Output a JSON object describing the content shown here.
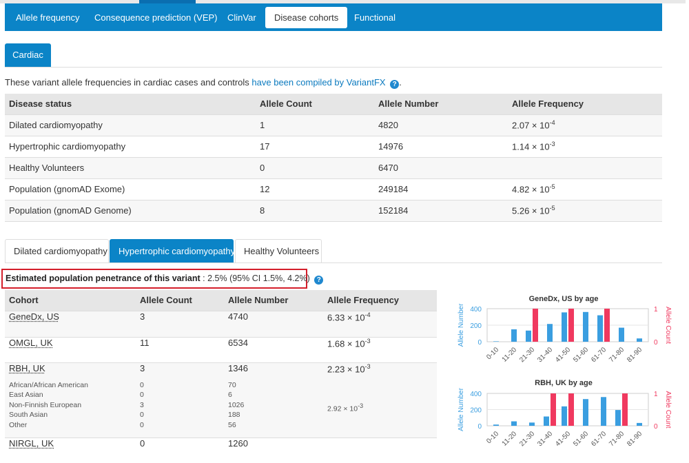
{
  "top_tabs": [
    {
      "label": "Allele frequency"
    },
    {
      "label": "Consequence prediction (VEP)"
    },
    {
      "label": "ClinVar"
    },
    {
      "label": "Disease cohorts"
    },
    {
      "label": "Functional"
    }
  ],
  "cardiac_tab": "Cardiac",
  "intro": {
    "text": "These variant allele frequencies in cardiac cases and controls ",
    "link": "have been compiled by VariantFX",
    "help": "?",
    "end": "."
  },
  "main_table": {
    "headers": [
      "Disease status",
      "Allele Count",
      "Allele Number",
      "Allele Frequency"
    ],
    "rows": [
      {
        "status": "Dilated cardiomyopathy",
        "count": "1",
        "number": "4820",
        "freq_base": "2.07 × 10",
        "freq_exp": "-4"
      },
      {
        "status": "Hypertrophic cardiomyopathy",
        "count": "17",
        "number": "14976",
        "freq_base": "1.14 × 10",
        "freq_exp": "-3"
      },
      {
        "status": "Healthy Volunteers",
        "count": "0",
        "number": "6470",
        "freq_base": "",
        "freq_exp": ""
      },
      {
        "status": "Population (gnomAD Exome)",
        "count": "12",
        "number": "249184",
        "freq_base": "4.82 × 10",
        "freq_exp": "-5"
      },
      {
        "status": "Population (gnomAD Genome)",
        "count": "8",
        "number": "152184",
        "freq_base": "5.26 × 10",
        "freq_exp": "-5"
      }
    ]
  },
  "sub_tabs": [
    {
      "label": "Dilated cardiomyopathy"
    },
    {
      "label": "Hypertrophic cardiomyopathy"
    },
    {
      "label": "Healthy Volunteers"
    }
  ],
  "penetrance": {
    "label": "Estimated population penetrance of this variant",
    "value": " : 2.5% (95% CI 1.5%, 4.2%)",
    "help": "?"
  },
  "cohort_table": {
    "headers": [
      "Cohort",
      "Allele Count",
      "Allele Number",
      "Allele Frequency"
    ],
    "rows": [
      {
        "cohort": "GeneDx, US",
        "count": "3",
        "number": "4740",
        "freq_base": "6.33 × 10",
        "freq_exp": "-4"
      },
      {
        "cohort": "OMGL, UK",
        "count": "11",
        "number": "6534",
        "freq_base": "1.68 × 10",
        "freq_exp": "-3"
      },
      {
        "cohort": "RBH, UK",
        "count": "3",
        "number": "1346",
        "freq_base": "2.23 × 10",
        "freq_exp": "-3",
        "sub": [
          {
            "name": "African/African American",
            "count": "0",
            "number": "70",
            "freq_base": "",
            "freq_exp": ""
          },
          {
            "name": "East Asian",
            "count": "0",
            "number": "6",
            "freq_base": "",
            "freq_exp": ""
          },
          {
            "name": "Non-Finnish European",
            "count": "3",
            "number": "1026",
            "freq_base": "2.92 × 10",
            "freq_exp": "-3"
          },
          {
            "name": "South Asian",
            "count": "0",
            "number": "188",
            "freq_base": "",
            "freq_exp": ""
          },
          {
            "name": "Other",
            "count": "0",
            "number": "56",
            "freq_base": "",
            "freq_exp": ""
          }
        ]
      },
      {
        "cohort": "NIRGL, UK",
        "count": "0",
        "number": "1260",
        "freq_base": "",
        "freq_exp": ""
      }
    ]
  },
  "chart_data": [
    {
      "type": "bar",
      "title": "GeneDx, US by age",
      "categories": [
        "0-10",
        "11-20",
        "21-30",
        "31-40",
        "41-50",
        "51-60",
        "61-70",
        "71-80",
        "81-90"
      ],
      "ylabel": "Allele Number",
      "y2label": "Allele Count",
      "ylim": [
        0,
        400
      ],
      "ylim2": [
        0,
        1
      ],
      "yticks": [
        "400",
        "200",
        "0"
      ],
      "y2ticks": [
        "1",
        "0"
      ],
      "series": [
        {
          "name": "Allele Number",
          "axis": "left",
          "color": "#3a9ee0",
          "values": [
            5,
            150,
            135,
            215,
            355,
            360,
            320,
            170,
            40
          ]
        },
        {
          "name": "Allele Count",
          "axis": "right",
          "color": "#f0395f",
          "values": [
            0,
            0,
            1,
            0,
            1,
            0,
            1,
            0,
            0
          ]
        }
      ]
    },
    {
      "type": "bar",
      "title": "RBH, UK by age",
      "categories": [
        "0-10",
        "11-20",
        "21-30",
        "31-40",
        "41-50",
        "51-60",
        "61-70",
        "71-80",
        "81-90"
      ],
      "ylabel": "Allele Number",
      "y2label": "Allele Count",
      "ylim": [
        0,
        400
      ],
      "ylim2": [
        0,
        1
      ],
      "yticks": [
        "400",
        "200",
        "0"
      ],
      "y2ticks": [
        "1",
        "0"
      ],
      "series": [
        {
          "name": "Allele Number",
          "axis": "left",
          "color": "#3a9ee0",
          "values": [
            15,
            55,
            40,
            115,
            240,
            330,
            355,
            195,
            35
          ]
        },
        {
          "name": "Allele Count",
          "axis": "right",
          "color": "#f0395f",
          "values": [
            0,
            0,
            0,
            1,
            1,
            0,
            0,
            1,
            0
          ]
        }
      ]
    }
  ]
}
